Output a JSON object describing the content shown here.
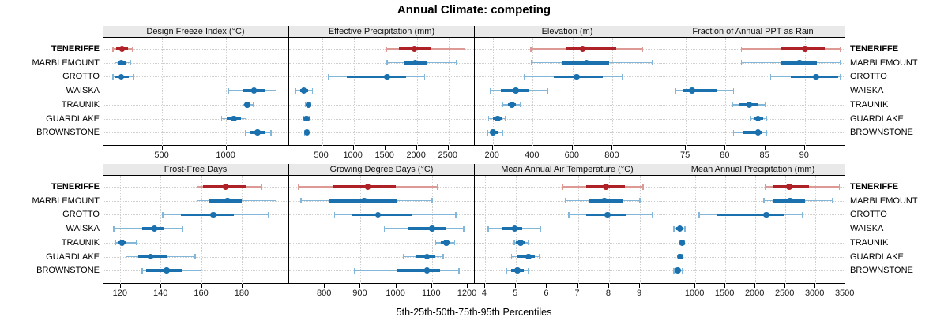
{
  "title": "Annual Climate: competing",
  "caption": "5th-25th-50th-75th-95th Percentiles",
  "colors": {
    "highlight": "#ae2126",
    "highlight_light": "#dd9a94",
    "normal": "#1a71ad",
    "normal_light": "#82b7da",
    "gridline": "#cfcfcf",
    "strip_background": "#e9e9e9",
    "border": "#000000"
  },
  "chart_data": {
    "type": "scatter",
    "style": "dot-and-whisker percentile intervals (5th, 25th, 50th, 75th, 95th)",
    "title": "Annual Climate: competing",
    "xlabel": "5th-25th-50th-75th-95th Percentiles",
    "legend_position": "none",
    "grid": "dotted",
    "highlight": "TENERIFFE",
    "categories": [
      "TENERIFFE",
      "MARBLEMOUNT",
      "GROTTO",
      "WAISKA",
      "TRAUNIK",
      "GUARDLAKE",
      "BROWNSTONE"
    ],
    "panels": [
      {
        "title": "Design Freeze Index (°C)",
        "row": 0,
        "col": 0,
        "xlim": [
          40,
          1490
        ],
        "ticks": [
          500,
          1000
        ],
        "values": {
          "TENERIFFE": [
            120,
            145,
            190,
            240,
            270
          ],
          "MARBLEMOUNT": [
            135,
            165,
            185,
            225,
            260
          ],
          "GROTTO": [
            120,
            140,
            185,
            245,
            280
          ],
          "WAISKA": [
            1025,
            1130,
            1220,
            1305,
            1395
          ],
          "TRAUNIK": [
            1135,
            1150,
            1170,
            1195,
            1215
          ],
          "GUARDLAKE": [
            970,
            1010,
            1065,
            1120,
            1160
          ],
          "BROWNSTONE": [
            1155,
            1185,
            1250,
            1310,
            1355
          ]
        }
      },
      {
        "title": "Effective Precipitation (mm)",
        "row": 0,
        "col": 1,
        "xlim": [
          -20,
          2915
        ],
        "ticks": [
          500,
          1000,
          1500,
          2000,
          2500
        ],
        "values": {
          "TENERIFFE": [
            1520,
            1710,
            1960,
            2220,
            2760
          ],
          "MARBLEMOUNT": [
            1530,
            1795,
            1970,
            2170,
            2625
          ],
          "GROTTO": [
            600,
            890,
            1530,
            1830,
            2120
          ],
          "WAISKA": [
            85,
            150,
            210,
            275,
            350
          ],
          "TRAUNIK": [
            235,
            260,
            285,
            305,
            325
          ],
          "GUARDLAKE": [
            210,
            230,
            255,
            280,
            300
          ],
          "BROWNSTONE": [
            225,
            240,
            260,
            285,
            310
          ]
        }
      },
      {
        "title": "Elevation (m)",
        "row": 0,
        "col": 2,
        "xlim": [
          110,
          1040
        ],
        "ticks": [
          200,
          400,
          600,
          800
        ],
        "values": {
          "TENERIFFE": [
            390,
            565,
            650,
            820,
            950
          ],
          "MARBLEMOUNT": [
            395,
            545,
            670,
            785,
            1000
          ],
          "GROTTO": [
            360,
            505,
            620,
            750,
            850
          ],
          "WAISKA": [
            190,
            240,
            315,
            385,
            475
          ],
          "TRAUNIK": [
            250,
            275,
            295,
            315,
            340
          ],
          "GUARDLAKE": [
            180,
            200,
            225,
            250,
            265
          ],
          "BROWNSTONE": [
            175,
            190,
            200,
            230,
            250
          ]
        }
      },
      {
        "title": "Fraction of Annual PPT as Rain",
        "row": 0,
        "col": 3,
        "xlim": [
          71.8,
          95.2
        ],
        "ticks": [
          75,
          80,
          85,
          90
        ],
        "values": {
          "TENERIFFE": [
            82,
            87,
            90,
            92.5,
            94.5
          ],
          "MARBLEMOUNT": [
            82,
            87,
            89.3,
            91.5,
            94.5
          ],
          "GROTTO": [
            85.7,
            88.2,
            91.4,
            94.2,
            94.5
          ],
          "WAISKA": [
            73.7,
            74.7,
            75.8,
            79,
            81
          ],
          "TRAUNIK": [
            80.9,
            81.7,
            83,
            84.2,
            85
          ],
          "GUARDLAKE": [
            83.2,
            83.6,
            84.1,
            84.7,
            85.2
          ],
          "BROWNSTONE": [
            81,
            82.2,
            84.1,
            84.7,
            85.2
          ]
        }
      },
      {
        "title": "Frost-Free Days",
        "row": 1,
        "col": 0,
        "xlim": [
          111.5,
          203
        ],
        "ticks": [
          120,
          140,
          160,
          180
        ],
        "values": {
          "TENERIFFE": [
            158,
            161,
            172,
            182,
            190
          ],
          "MARBLEMOUNT": [
            158,
            164,
            173,
            180,
            197
          ],
          "GROTTO": [
            141,
            150,
            166,
            176,
            193
          ],
          "WAISKA": [
            117,
            131,
            137,
            142,
            151
          ],
          "TRAUNIK": [
            118,
            119,
            121,
            123,
            128
          ],
          "GUARDLAKE": [
            123,
            129,
            135,
            143,
            157
          ],
          "BROWNSTONE": [
            131,
            133,
            143,
            151,
            160
          ]
        }
      },
      {
        "title": "Growing Degree Days (°C)",
        "row": 1,
        "col": 1,
        "xlim": [
          700,
          1220
        ],
        "ticks": [
          800,
          900,
          1000,
          1100,
          1200
        ],
        "values": {
          "TENERIFFE": [
            727,
            822,
            920,
            1000,
            1115
          ],
          "MARBLEMOUNT": [
            733,
            811,
            910,
            1004,
            1100
          ],
          "GROTTO": [
            827,
            875,
            949,
            1045,
            1167
          ],
          "WAISKA": [
            967,
            1031,
            1100,
            1138,
            1189
          ],
          "TRAUNIK": [
            1111,
            1125,
            1140,
            1150,
            1164
          ],
          "GUARDLAKE": [
            1020,
            1056,
            1086,
            1109,
            1131
          ],
          "BROWNSTONE": [
            884,
            1004,
            1086,
            1122,
            1176
          ]
        }
      },
      {
        "title": "Mean Annual Air Temperature (°C)",
        "row": 1,
        "col": 2,
        "xlim": [
          3.67,
          9.66
        ],
        "ticks": [
          4,
          5,
          6,
          7,
          8,
          9
        ],
        "values": {
          "TENERIFFE": [
            6.5,
            7.25,
            7.9,
            8.5,
            9.1
          ],
          "MARBLEMOUNT": [
            6.6,
            7.35,
            7.85,
            8.45,
            9.0
          ],
          "GROTTO": [
            6.7,
            7.25,
            7.95,
            8.55,
            9.4
          ],
          "WAISKA": [
            4.1,
            4.55,
            4.95,
            5.2,
            5.8
          ],
          "TRAUNIK": [
            4.95,
            5.0,
            5.15,
            5.3,
            5.4
          ],
          "GUARDLAKE": [
            4.85,
            5.05,
            5.4,
            5.6,
            5.75
          ],
          "BROWNSTONE": [
            4.7,
            4.85,
            5.05,
            5.25,
            5.4
          ]
        }
      },
      {
        "title": "Mean Annual Precipitation (mm)",
        "row": 1,
        "col": 3,
        "xlim": [
          420,
          3510
        ],
        "ticks": [
          1000,
          1500,
          2000,
          2500,
          3000,
          3500
        ],
        "values": {
          "TENERIFFE": [
            2170,
            2300,
            2560,
            2890,
            3400
          ],
          "MARBLEMOUNT": [
            2145,
            2300,
            2575,
            2825,
            3280
          ],
          "GROTTO": [
            1065,
            1365,
            2180,
            2465,
            2785
          ],
          "WAISKA": [
            645,
            680,
            740,
            790,
            830
          ],
          "TRAUNIK": [
            740,
            760,
            780,
            800,
            820
          ],
          "GUARDLAKE": [
            720,
            735,
            750,
            770,
            790
          ],
          "BROWNSTONE": [
            645,
            670,
            710,
            750,
            780
          ]
        }
      }
    ]
  }
}
